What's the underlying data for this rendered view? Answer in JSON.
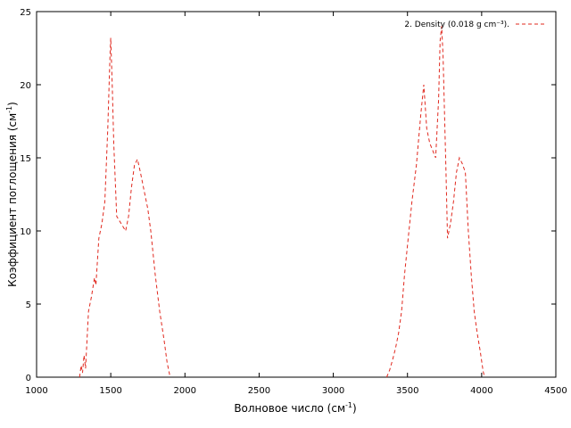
{
  "chart_data": {
    "type": "line",
    "title": "",
    "xlabel": "Волновое число (см",
    "xlabel_sup": "-1",
    "xlabel_end": ")",
    "ylabel": "Коэффициент поглощения (см",
    "ylabel_sup": "-1",
    "ylabel_end": ")",
    "xlim": [
      1000,
      4500
    ],
    "ylim": [
      0,
      25
    ],
    "xticks": [
      1000,
      1500,
      2000,
      2500,
      3000,
      3500,
      4000,
      4500
    ],
    "yticks": [
      0,
      5,
      10,
      15,
      20,
      25
    ],
    "grid": false,
    "legend_position": "top-right",
    "series": [
      {
        "name": "2. Density (0.018 g cm⁻³).",
        "color": "#e0281e",
        "style": "dashed",
        "segments": [
          [
            [
              1290,
              0
            ],
            [
              1300,
              0.8
            ],
            [
              1310,
              0.3
            ],
            [
              1320,
              1.5
            ],
            [
              1330,
              0.6
            ],
            [
              1340,
              2.5
            ],
            [
              1350,
              4.5
            ],
            [
              1370,
              5.5
            ],
            [
              1390,
              6.8
            ],
            [
              1400,
              6.3
            ],
            [
              1420,
              9.5
            ],
            [
              1440,
              10.5
            ],
            [
              1460,
              12
            ],
            [
              1480,
              17
            ],
            [
              1495,
              22
            ],
            [
              1500,
              23.2
            ],
            [
              1510,
              20
            ],
            [
              1520,
              16
            ],
            [
              1540,
              11
            ],
            [
              1570,
              10.5
            ],
            [
              1600,
              10
            ],
            [
              1620,
              11
            ],
            [
              1640,
              13
            ],
            [
              1660,
              14.5
            ],
            [
              1680,
              14.9
            ],
            [
              1700,
              14
            ],
            [
              1720,
              13
            ],
            [
              1750,
              11.5
            ],
            [
              1770,
              10
            ],
            [
              1800,
              7
            ],
            [
              1830,
              4.5
            ],
            [
              1860,
              2.5
            ],
            [
              1880,
              1
            ],
            [
              1900,
              0
            ]
          ],
          [
            [
              3360,
              0
            ],
            [
              3380,
              0.5
            ],
            [
              3400,
              1.2
            ],
            [
              3420,
              2
            ],
            [
              3440,
              3
            ],
            [
              3460,
              4.5
            ],
            [
              3480,
              7
            ],
            [
              3500,
              9
            ],
            [
              3530,
              12
            ],
            [
              3560,
              14.5
            ],
            [
              3590,
              18
            ],
            [
              3610,
              20
            ],
            [
              3630,
              17
            ],
            [
              3650,
              16
            ],
            [
              3670,
              15.5
            ],
            [
              3690,
              15
            ],
            [
              3710,
              19
            ],
            [
              3720,
              23
            ],
            [
              3730,
              24
            ],
            [
              3740,
              22
            ],
            [
              3760,
              14
            ],
            [
              3770,
              9.5
            ],
            [
              3790,
              10.5
            ],
            [
              3810,
              12
            ],
            [
              3830,
              14
            ],
            [
              3850,
              15
            ],
            [
              3870,
              14.6
            ],
            [
              3890,
              14
            ],
            [
              3910,
              10
            ],
            [
              3930,
              7
            ],
            [
              3950,
              4.5
            ],
            [
              3970,
              3
            ],
            [
              3990,
              1.8
            ],
            [
              4010,
              0.4
            ],
            [
              4020,
              0
            ]
          ]
        ]
      }
    ]
  }
}
